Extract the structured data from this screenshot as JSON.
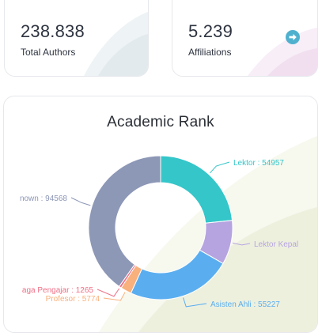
{
  "stats": {
    "total_authors": {
      "value": "238.838",
      "label": "Total Authors"
    },
    "affiliations": {
      "value": "5.239",
      "label": "Affiliations",
      "action_icon": "arrow-right-circle-icon"
    }
  },
  "chart_data": {
    "type": "pie",
    "donut": true,
    "title": "Academic Rank",
    "legend": "none",
    "slices": [
      {
        "name": "Lektor",
        "value": 54957,
        "label": "Lektor : 54957",
        "color": "#34c6c9"
      },
      {
        "name": "Lektor Kepala",
        "value": 23300,
        "label": "Lektor Kepal",
        "color": "#b6a4e0"
      },
      {
        "name": "Asisten Ahli",
        "value": 55227,
        "label": "Asisten Ahli : 55227",
        "color": "#5aaef0"
      },
      {
        "name": "Profesor",
        "value": 5774,
        "label": "Profesor : 5774",
        "color": "#f8b07c"
      },
      {
        "name": "Tenaga Pengajar",
        "value": 1265,
        "label": "aga Pengajar : 1265",
        "color": "#ef6f86"
      },
      {
        "name": "Unknown",
        "value": 94568,
        "label": "nown : 94568",
        "color": "#8d97b6"
      }
    ]
  }
}
